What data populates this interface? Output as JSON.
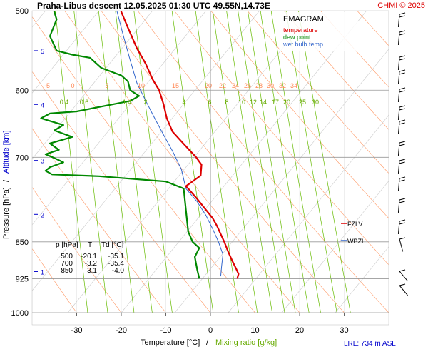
{
  "header": {
    "title": "Praha-Libus   descent   12.05.2025 01:30 UTC  49.55N,14.73E",
    "credit": "CHMI © 2025"
  },
  "legend": {
    "title": "EMAGRAM",
    "temperature": "temperature",
    "dew_point": "dew point",
    "wet_bulb": "wet bulb temp."
  },
  "axes": {
    "xlabel_temp": "Temperature [°C]",
    "xlabel_sep": "/",
    "xlabel_mix": "Mixing ratio [g/kg]",
    "ylabel_pressure": "Pressure [hPa]",
    "ylabel_sep": "/",
    "ylabel_alt": "Altitude [km]"
  },
  "footer": {
    "lrl": "LRL: 734 m ASL"
  },
  "levels": {
    "fzlv": "FZLV",
    "wbzl": "WBZL"
  },
  "table": {
    "headers": [
      "p [hPa]",
      "T",
      "Td [°C]"
    ],
    "rows": [
      [
        "500",
        "-20.1",
        "-35.1"
      ],
      [
        "700",
        "-3.2",
        "-35.4"
      ],
      [
        "850",
        "3.1",
        "-4.0"
      ]
    ]
  },
  "colors": {
    "temperature": "#dd0000",
    "dew_point": "#008800",
    "wet_bulb": "#3366cc",
    "mixing": "#66bb00",
    "dry_adiabat": "#ff9966",
    "grid": "#999999",
    "altitude": "#0000cc"
  },
  "chart_data": {
    "type": "line",
    "title": "Praha-Libus   descent   12.05.2025 01:30 UTC  49.55N,14.73E",
    "xlabel": "Temperature [°C]  /  Mixing ratio [g/kg]",
    "ylabel": "Pressure [hPa]  /  Altitude [km]",
    "xlim": [
      -40,
      40
    ],
    "ylim": [
      1000,
      500
    ],
    "y_scale": "log",
    "x_ticks": [
      -30,
      -20,
      -10,
      0,
      10,
      20,
      30
    ],
    "y_ticks": [
      500,
      600,
      700,
      850,
      925,
      1000
    ],
    "altitude_ticks": [
      {
        "km": 1,
        "p": 910
      },
      {
        "km": 2,
        "p": 798
      },
      {
        "km": 3,
        "p": 705
      },
      {
        "km": 4,
        "p": 620
      },
      {
        "km": 5,
        "p": 548
      }
    ],
    "mixing_ratio_labels": [
      "0.4",
      "0.6",
      "1",
      "1.4",
      "2",
      "4",
      "6",
      "8",
      "10",
      "12",
      "14",
      "17",
      "20",
      "25",
      "30"
    ],
    "dry_adiabat_labels": [
      "-5",
      "0",
      "5",
      "10",
      "15",
      "20",
      "22",
      "24",
      "26",
      "28",
      "30",
      "32",
      "34"
    ],
    "series": [
      {
        "name": "temperature",
        "points": [
          [
            -20.1,
            500
          ],
          [
            -18.5,
            520
          ],
          [
            -16.5,
            545
          ],
          [
            -14.5,
            565
          ],
          [
            -13.0,
            585
          ],
          [
            -11.5,
            600
          ],
          [
            -10.5,
            620
          ],
          [
            -9.8,
            640
          ],
          [
            -8.5,
            660
          ],
          [
            -6.5,
            675
          ],
          [
            -4.5,
            690
          ],
          [
            -3.2,
            700
          ],
          [
            -2.0,
            712
          ],
          [
            -2.2,
            730
          ],
          [
            -5.5,
            748
          ],
          [
            -5.0,
            752
          ],
          [
            -3.0,
            770
          ],
          [
            -1.0,
            790
          ],
          [
            0.5,
            805
          ],
          [
            1.5,
            820
          ],
          [
            2.3,
            835
          ],
          [
            3.1,
            850
          ],
          [
            4.0,
            870
          ],
          [
            5.0,
            890
          ],
          [
            5.8,
            905
          ],
          [
            6.3,
            915
          ],
          [
            6.0,
            925
          ]
        ]
      },
      {
        "name": "dew point",
        "points": [
          [
            -35.1,
            500
          ],
          [
            -34.5,
            510
          ],
          [
            -36.0,
            530
          ],
          [
            -34.5,
            548
          ],
          [
            -31.0,
            553
          ],
          [
            -27.0,
            557
          ],
          [
            -24.5,
            570
          ],
          [
            -20.0,
            580
          ],
          [
            -18.5,
            588
          ],
          [
            -18.0,
            600
          ],
          [
            -16.0,
            608
          ],
          [
            -18.0,
            615
          ],
          [
            -30.0,
            630
          ],
          [
            -36.0,
            633
          ],
          [
            -38.0,
            640
          ],
          [
            -33.0,
            650
          ],
          [
            -35.0,
            658
          ],
          [
            -31.0,
            668
          ],
          [
            -36.0,
            678
          ],
          [
            -34.0,
            688
          ],
          [
            -37.0,
            695
          ],
          [
            -35.4,
            700
          ],
          [
            -33.0,
            708
          ],
          [
            -36.0,
            716
          ],
          [
            -37.0,
            722
          ],
          [
            -35.5,
            728
          ],
          [
            -25.0,
            731
          ],
          [
            -10.0,
            740
          ],
          [
            -6.0,
            752
          ],
          [
            -5.5,
            790
          ],
          [
            -5.0,
            830
          ],
          [
            -4.0,
            850
          ],
          [
            -2.5,
            862
          ],
          [
            -3.5,
            880
          ],
          [
            -3.0,
            905
          ],
          [
            -2.5,
            925
          ]
        ]
      },
      {
        "name": "wet bulb temp.",
        "points": [
          [
            -21.0,
            500
          ],
          [
            -19.5,
            530
          ],
          [
            -18.0,
            560
          ],
          [
            -16.5,
            590
          ],
          [
            -14.5,
            615
          ],
          [
            -12.5,
            640
          ],
          [
            -10.5,
            665
          ],
          [
            -8.5,
            690
          ],
          [
            -6.5,
            720
          ],
          [
            -5.5,
            752
          ],
          [
            -3.0,
            775
          ],
          [
            -1.0,
            800
          ],
          [
            0.5,
            825
          ],
          [
            1.8,
            850
          ],
          [
            2.8,
            875
          ],
          [
            2.5,
            900
          ],
          [
            2.3,
            920
          ]
        ]
      }
    ]
  }
}
